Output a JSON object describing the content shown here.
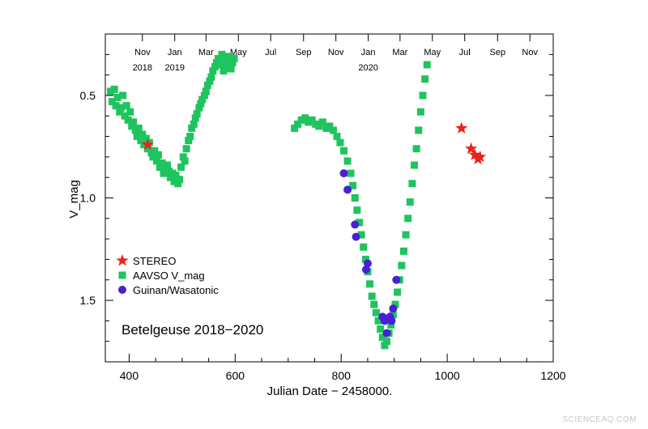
{
  "chart_data": {
    "type": "scatter",
    "title": "",
    "annotation": "Betelgeuse 2018−2020",
    "xlabel": "Julian Date − 2458000.",
    "ylabel": "V_mag",
    "xlim": [
      355,
      1200
    ],
    "ylim": [
      1.8,
      0.2
    ],
    "y_inverted": true,
    "grid": false,
    "legend_position": "lower-left",
    "x_ticks": [
      "400",
      "600",
      "800",
      "1000",
      "1200"
    ],
    "y_ticks": [
      "0.5",
      "1.0",
      "1.5"
    ],
    "top_axis_months": [
      {
        "jd": 425,
        "label": "Nov",
        "year": "2018"
      },
      {
        "jd": 486,
        "label": "Jan",
        "year": "2019"
      },
      {
        "jd": 545,
        "label": "Mar",
        "year": ""
      },
      {
        "jd": 606,
        "label": "May",
        "year": ""
      },
      {
        "jd": 667,
        "label": "Jul",
        "year": ""
      },
      {
        "jd": 729,
        "label": "Sep",
        "year": ""
      },
      {
        "jd": 790,
        "label": "Nov",
        "year": ""
      },
      {
        "jd": 851,
        "label": "Jan",
        "year": "2020"
      },
      {
        "jd": 911,
        "label": "Mar",
        "year": ""
      },
      {
        "jd": 972,
        "label": "May",
        "year": ""
      },
      {
        "jd": 1033,
        "label": "Jul",
        "year": ""
      },
      {
        "jd": 1095,
        "label": "Sep",
        "year": ""
      },
      {
        "jd": 1156,
        "label": "Nov",
        "year": ""
      }
    ],
    "series": [
      {
        "name": "STEREO",
        "marker": "star",
        "color": "#e8241c",
        "x": [
          435,
          1027,
          1045,
          1052,
          1058,
          1062
        ],
        "y": [
          0.74,
          0.66,
          0.76,
          0.79,
          0.81,
          0.8
        ]
      },
      {
        "name": "AAVSO V_mag",
        "marker": "square",
        "color": "#1fc45e",
        "x": [
          365,
          368,
          372,
          375,
          378,
          382,
          385,
          388,
          392,
          395,
          398,
          402,
          405,
          408,
          412,
          415,
          418,
          422,
          425,
          428,
          432,
          435,
          438,
          442,
          445,
          448,
          452,
          455,
          458,
          462,
          465,
          468,
          472,
          475,
          478,
          482,
          485,
          488,
          492,
          495,
          498,
          502,
          505,
          508,
          512,
          515,
          518,
          522,
          525,
          528,
          532,
          535,
          538,
          542,
          545,
          548,
          552,
          555,
          558,
          562,
          565,
          568,
          572,
          575,
          578,
          582,
          585,
          588,
          592,
          595,
          598,
          712,
          718,
          725,
          732,
          738,
          745,
          752,
          758,
          765,
          772,
          778,
          785,
          792,
          798,
          805,
          812,
          818,
          822,
          826,
          830,
          834,
          838,
          842,
          846,
          850,
          854,
          858,
          862,
          866,
          870,
          874,
          878,
          882,
          886,
          890,
          894,
          898,
          902,
          906,
          910,
          914,
          918,
          922,
          926,
          930,
          934,
          938,
          942,
          946,
          950,
          954,
          958,
          962
        ],
        "y": [
          0.48,
          0.53,
          0.47,
          0.55,
          0.51,
          0.58,
          0.56,
          0.5,
          0.6,
          0.55,
          0.62,
          0.58,
          0.65,
          0.63,
          0.67,
          0.7,
          0.66,
          0.72,
          0.69,
          0.74,
          0.71,
          0.76,
          0.73,
          0.78,
          0.8,
          0.77,
          0.82,
          0.79,
          0.85,
          0.83,
          0.88,
          0.86,
          0.84,
          0.87,
          0.9,
          0.88,
          0.92,
          0.89,
          0.93,
          0.91,
          0.85,
          0.8,
          0.82,
          0.76,
          0.72,
          0.7,
          0.66,
          0.64,
          0.61,
          0.59,
          0.56,
          0.54,
          0.52,
          0.5,
          0.48,
          0.45,
          0.43,
          0.41,
          0.38,
          0.36,
          0.34,
          0.32,
          0.35,
          0.3,
          0.38,
          0.33,
          0.36,
          0.31,
          0.37,
          0.34,
          0.32,
          0.66,
          0.64,
          0.62,
          0.61,
          0.63,
          0.62,
          0.64,
          0.65,
          0.63,
          0.66,
          0.65,
          0.67,
          0.7,
          0.73,
          0.77,
          0.82,
          0.88,
          0.94,
          1.0,
          1.06,
          1.12,
          1.18,
          1.24,
          1.3,
          1.36,
          1.42,
          1.48,
          1.52,
          1.56,
          1.6,
          1.64,
          1.68,
          1.72,
          1.7,
          1.66,
          1.62,
          1.57,
          1.52,
          1.46,
          1.4,
          1.33,
          1.26,
          1.18,
          1.1,
          1.02,
          0.93,
          0.84,
          0.76,
          0.67,
          0.58,
          0.5,
          0.42,
          0.35
        ]
      },
      {
        "name": "Guinan/Wasatonic",
        "marker": "circle",
        "color": "#4a1fd6",
        "x": [
          805,
          812,
          826,
          828,
          847,
          850,
          878,
          882,
          886,
          892,
          895,
          898,
          904
        ],
        "y": [
          0.88,
          0.96,
          1.13,
          1.19,
          1.35,
          1.32,
          1.58,
          1.6,
          1.66,
          1.58,
          1.6,
          1.54,
          1.4
        ]
      }
    ]
  },
  "watermark": "SCIENCEAQ.COM"
}
